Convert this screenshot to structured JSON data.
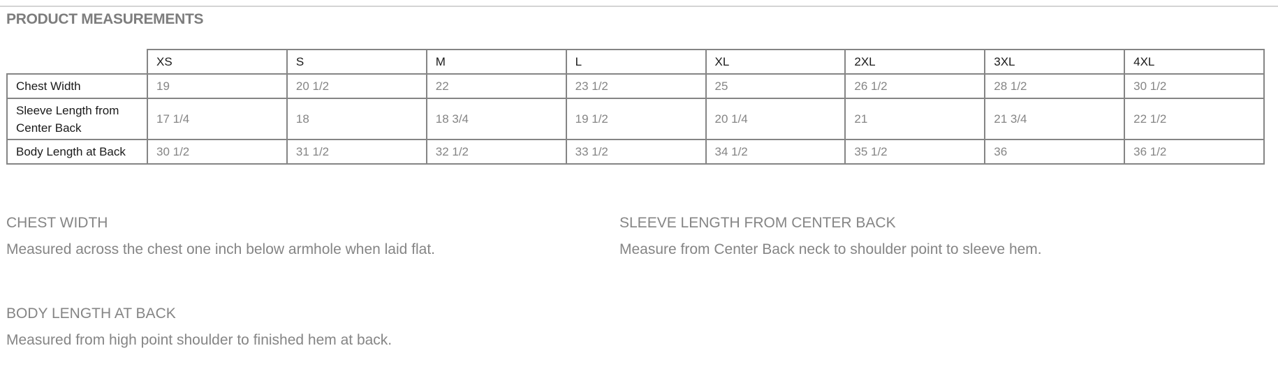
{
  "title": "PRODUCT MEASUREMENTS",
  "table": {
    "sizes": [
      "XS",
      "S",
      "M",
      "L",
      "XL",
      "2XL",
      "3XL",
      "4XL"
    ],
    "rows": [
      {
        "label": "Chest Width",
        "values": [
          "19",
          "20 1/2",
          "22",
          "23 1/2",
          "25",
          "26 1/2",
          "28 1/2",
          "30 1/2"
        ]
      },
      {
        "label": "Sleeve Length from Center Back",
        "values": [
          "17 1/4",
          "18",
          "18 3/4",
          "19 1/2",
          "20 1/4",
          "21",
          "21 3/4",
          "22 1/2"
        ]
      },
      {
        "label": "Body Length at Back",
        "values": [
          "30 1/2",
          "31 1/2",
          "32 1/2",
          "33 1/2",
          "34 1/2",
          "35 1/2",
          "36",
          "36 1/2"
        ]
      }
    ]
  },
  "definitions": [
    {
      "heading": "CHEST WIDTH",
      "text": "Measured across the chest one inch below armhole when laid flat."
    },
    {
      "heading": "SLEEVE LENGTH FROM CENTER BACK",
      "text": "Measure from Center Back neck to shoulder point to sleeve hem."
    },
    {
      "heading": "BODY LENGTH AT BACK",
      "text": "Measured from high point shoulder to finished hem at back."
    }
  ]
}
